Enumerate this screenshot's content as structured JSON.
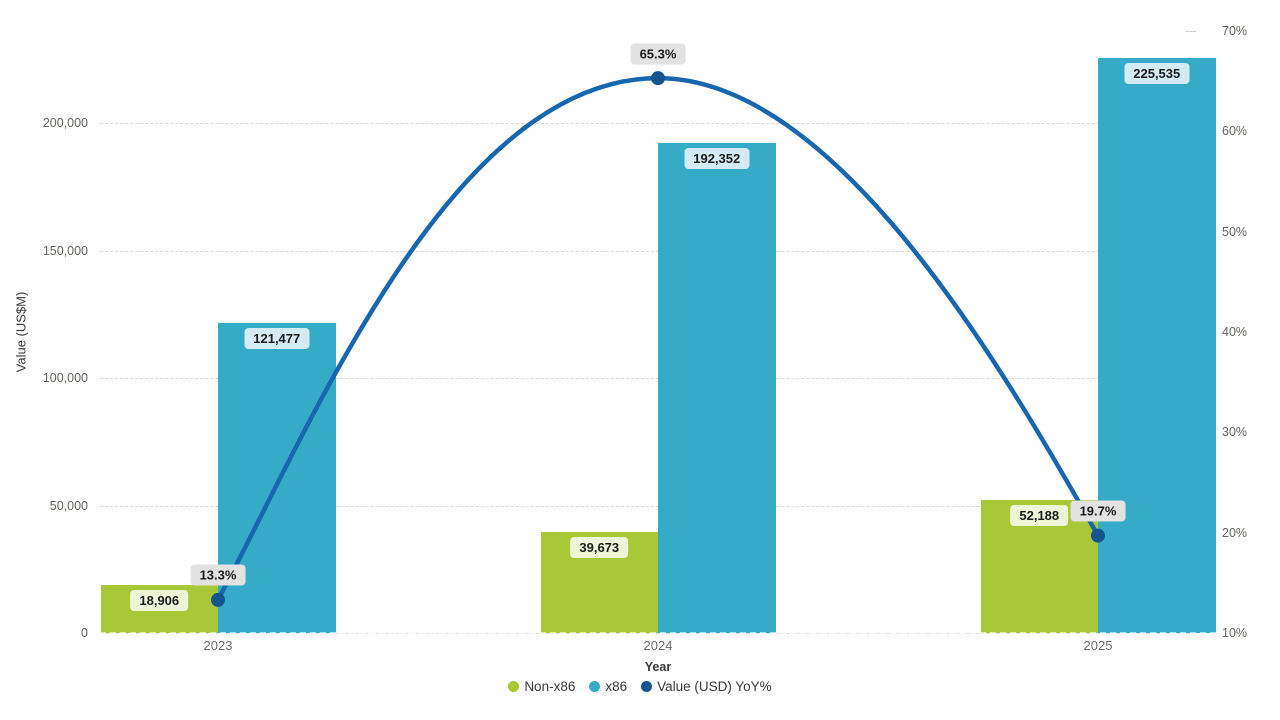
{
  "chart_data": {
    "type": "combo-bar-line",
    "title": "",
    "categories": [
      "2023",
      "2024",
      "2025"
    ],
    "series": [
      {
        "name": "Non-x86",
        "type": "bar",
        "axis": "left",
        "color": "#a8c838",
        "label_bg": "#eff6d7",
        "values": [
          18906,
          39673,
          52188
        ],
        "labels": [
          "18,906",
          "39,673",
          "52,188"
        ]
      },
      {
        "name": "x86",
        "type": "bar",
        "axis": "left",
        "color": "#35abc7",
        "label_bg": "#d2ebf4",
        "values": [
          121477,
          192352,
          225535
        ],
        "labels": [
          "121,477",
          "192,352",
          "225,535"
        ]
      },
      {
        "name": "Value (USD) YoY%",
        "type": "line",
        "axis": "right",
        "color": "#1766b0",
        "marker_color": "#16538f",
        "label_bg": "#e2e2e2",
        "values": [
          13.3,
          65.3,
          19.7
        ],
        "labels": [
          "13.3%",
          "65.3%",
          "19.7%"
        ]
      }
    ],
    "x_axis": {
      "title": "Year",
      "ticks": [
        "2023",
        "2024",
        "2025"
      ]
    },
    "y_left": {
      "title": "Value (US$M)",
      "tick_values": [
        0,
        50000,
        100000,
        150000,
        200000
      ],
      "tick_labels": [
        "0",
        "50,000",
        "100,000",
        "150,000",
        "200,000"
      ],
      "range": [
        0,
        250000
      ],
      "grid": "dashed"
    },
    "y_right": {
      "title": "",
      "tick_values": [
        10,
        20,
        30,
        40,
        50,
        60,
        70
      ],
      "tick_labels": [
        "10%",
        "20%",
        "30%",
        "40%",
        "50%",
        "60%",
        "70%"
      ],
      "range": [
        10,
        70
      ]
    },
    "legend_position": "bottom-center"
  },
  "legend": {
    "items": [
      {
        "label": "Non-x86",
        "color": "#a8c838"
      },
      {
        "label": "x86",
        "color": "#35abc7"
      },
      {
        "label": "Value (USD) YoY%",
        "color": "#16538f"
      }
    ]
  },
  "colors": {
    "gridline": "#d9d9d9",
    "tick_text": "#666460",
    "axis_title_text": "#3a3a3a",
    "background": "#ffffff"
  }
}
